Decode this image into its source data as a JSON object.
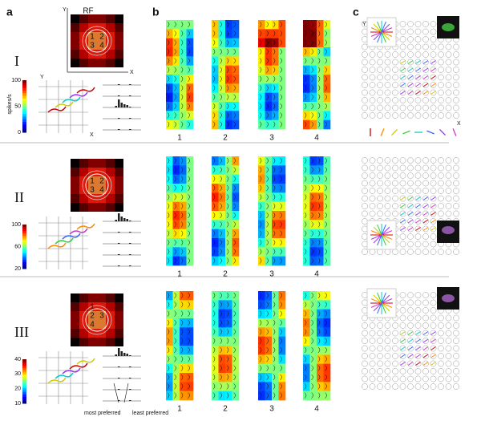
{
  "panels": [
    "a",
    "b",
    "c"
  ],
  "rf_title": "RF",
  "axes": {
    "x": "X",
    "y": "Y"
  },
  "rows": [
    {
      "numeral": "I",
      "quadrants": [
        "1",
        "2",
        "3",
        "4"
      ],
      "colorbar": {
        "label": "spikes/s",
        "ticks": [
          "100",
          "50",
          "0"
        ]
      },
      "columns": [
        "1",
        "2",
        "3",
        "4"
      ]
    },
    {
      "numeral": "II",
      "quadrants": [
        "1",
        "2",
        "3",
        "4"
      ],
      "colorbar": {
        "ticks": [
          "100",
          "60",
          "20"
        ]
      },
      "columns": [
        "1",
        "2",
        "3",
        "4"
      ]
    },
    {
      "numeral": "III",
      "quadrants": [
        "1",
        "2",
        "3",
        "4"
      ],
      "colorbar": {
        "ticks": [
          "40",
          "30",
          "20",
          "10"
        ]
      },
      "columns": [
        "1",
        "2",
        "3",
        "4"
      ]
    }
  ],
  "legend": {
    "most": "most preferred",
    "least": "least preferred"
  }
}
